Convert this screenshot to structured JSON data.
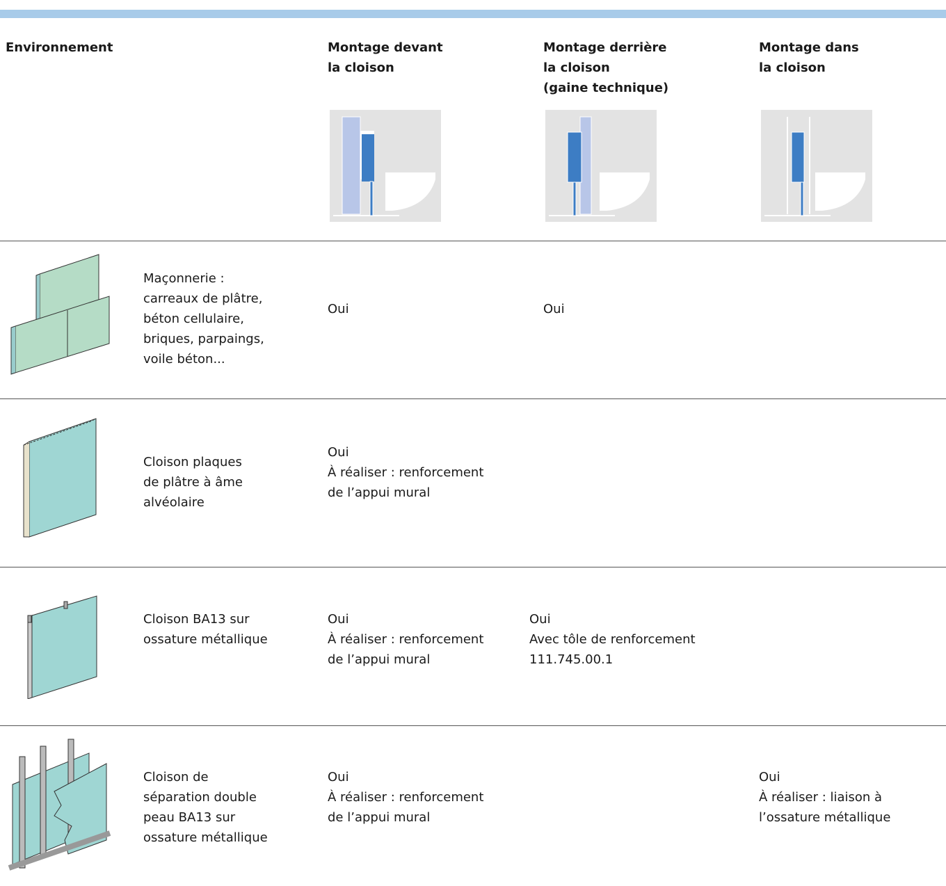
{
  "header": {
    "environment": "Environnement",
    "columns": [
      "Montage devant\nla cloison",
      "Montage derrière\nla cloison\n(gaine technique)",
      "Montage dans\nla cloison"
    ]
  },
  "rows": [
    {
      "environment": "Maçonnerie :\ncarreaux de plâtre,\nbéton cellulaire,\nbriques, parpaings,\nvoile béton...",
      "front": "Oui",
      "behind": "Oui"
    },
    {
      "environment": "Cloison plaques\nde plâtre à âme\nalvéolaire",
      "front": "Oui\nÀ réaliser : renforcement\nde l’appui mural"
    },
    {
      "environment": "Cloison BA13 sur\nossature métallique",
      "front": "Oui\nÀ réaliser : renforcement\nde l’appui mural",
      "behind": "Oui\nAvec tôle de renforcement\n111.745.00.1"
    },
    {
      "environment": "Cloison de\nséparation double\npeau BA13 sur\nossature métallique",
      "front": "Oui\nÀ réaliser : renforcement\nde l’appui mural",
      "inside": "Oui\nÀ réaliser : liaison à\nl’ossature métallique"
    }
  ]
}
